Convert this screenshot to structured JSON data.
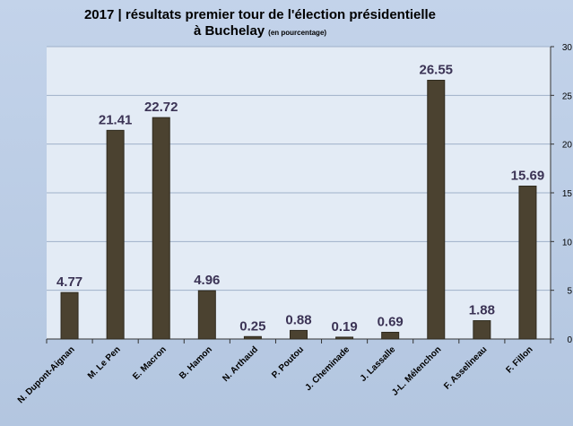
{
  "chart_data": {
    "type": "bar",
    "title": "2017 | résultats premier tour de l'élection présidentielle",
    "title_line2": "à Buchelay",
    "subtitle": "(en pourcentage)",
    "categories": [
      "N. Dupont-Aignan",
      "M. Le Pen",
      "E. Macron",
      "B. Hamon",
      "N. Arthaud",
      "P. Poutou",
      "J. Cheminade",
      "J. Lassalle",
      "J-L. Mélenchon",
      "F. Asselineau",
      "F. Fillon"
    ],
    "values": [
      4.77,
      21.41,
      22.72,
      4.96,
      0.25,
      0.88,
      0.19,
      0.69,
      26.55,
      1.88,
      15.69
    ],
    "value_labels": [
      "4.77",
      "21.41",
      "22.72",
      "4.96",
      "0.25",
      "0.88",
      "0.19",
      "0.69",
      "26.55",
      "1.88",
      "15.69"
    ],
    "ylim": [
      0,
      30
    ],
    "yticks": [
      0,
      5,
      10,
      15,
      20,
      25,
      30
    ],
    "ylabel": "",
    "xlabel": "",
    "grid": true,
    "y_axis_side": "right",
    "colors": {
      "bar": "#4b4230",
      "plot_background": "#e3ebf5",
      "gridline": "#9fb1c9",
      "data_label": "#3b3355"
    }
  }
}
